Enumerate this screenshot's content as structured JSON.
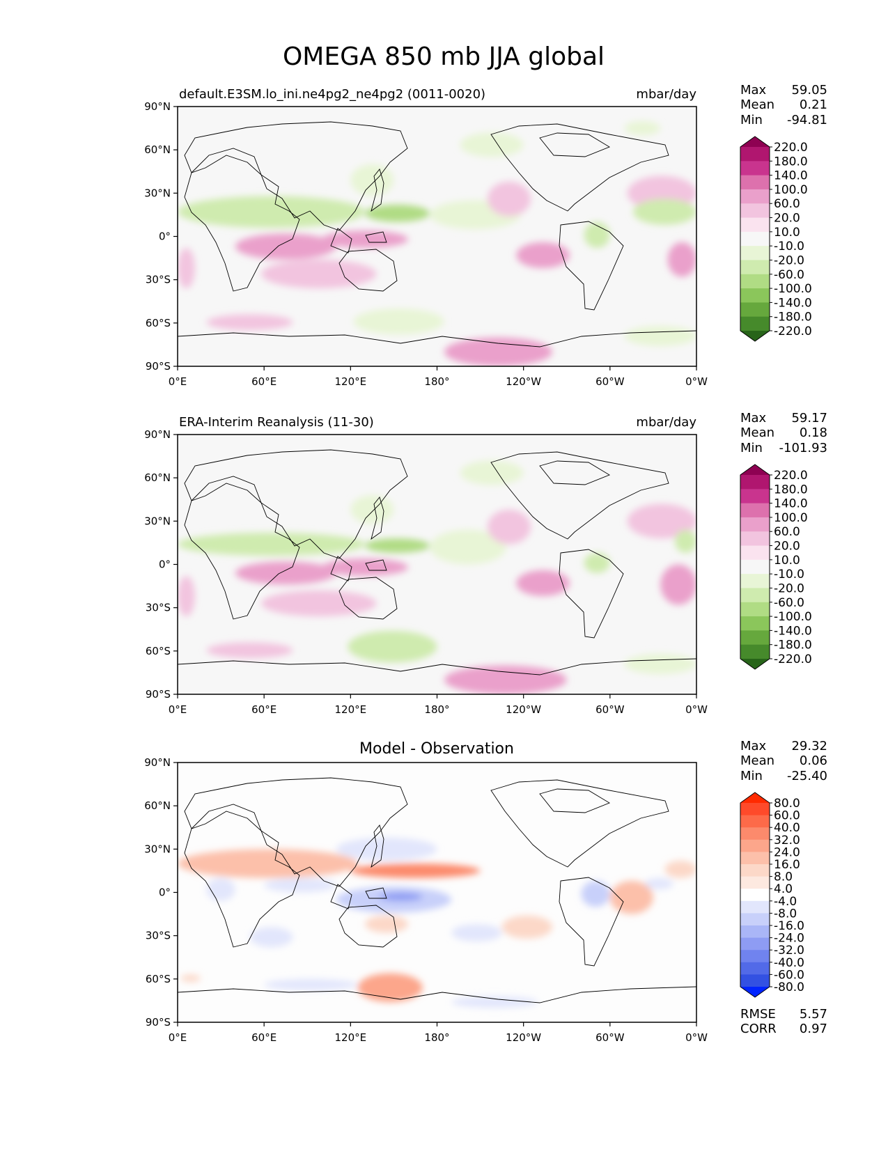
{
  "figure": {
    "title": "OMEGA 850 mb JJA global"
  },
  "axes": {
    "lat_ticks": [
      "90°N",
      "60°N",
      "30°N",
      "0°",
      "30°S",
      "60°S",
      "90°S"
    ],
    "lon_ticks": [
      "0°E",
      "60°E",
      "120°E",
      "180°",
      "120°W",
      "60°W",
      "0°W"
    ]
  },
  "stat_labels": {
    "max": "Max",
    "mean": "Mean",
    "min": "Min",
    "rmse": "RMSE",
    "corr": "CORR"
  },
  "colors": {
    "ocean_background": "#f7f7f7",
    "diff_background": "#fdfdfd",
    "coastline": "#000000"
  },
  "chart_data": [
    {
      "type": "heatmap",
      "panel": "test",
      "title": "default.E3SM.lo_ini.ne4pg2_ne4pg2 (0011-0020)",
      "units": "mbar/day",
      "xlim": [
        0,
        360
      ],
      "ylim": [
        -90,
        90
      ],
      "stats": {
        "max": "59.05",
        "mean": "0.21",
        "min": "-94.81"
      },
      "levels": [
        "220.0",
        "180.0",
        "140.0",
        "100.0",
        "60.0",
        "20.0",
        "10.0",
        "-10.0",
        "-20.0",
        "-60.0",
        "-100.0",
        "-140.0",
        "-180.0",
        "-220.0"
      ],
      "colorbar_colors": [
        "#8e0152",
        "#b0166f",
        "#c9348e",
        "#dd71ad",
        "#eaa0cb",
        "#f2c4df",
        "#fae3ef",
        "#f7f7f7",
        "#e8f5d6",
        "#cfebaf",
        "#b0dc84",
        "#8bc65b",
        "#66a83d",
        "#468a2b",
        "#276419"
      ],
      "features": [
        {
          "sign": "neg",
          "level": 2,
          "lon": [
            0,
            130
          ],
          "lat": [
            6,
            28
          ]
        },
        {
          "sign": "neg",
          "level": 3,
          "lon": [
            130,
            175
          ],
          "lat": [
            10,
            22
          ]
        },
        {
          "sign": "neg",
          "level": 1,
          "lon": [
            175,
            238
          ],
          "lat": [
            5,
            25
          ]
        },
        {
          "sign": "neg",
          "level": 1,
          "lon": [
            120,
            150
          ],
          "lat": [
            28,
            50
          ]
        },
        {
          "sign": "neg",
          "level": 2,
          "lon": [
            282,
            300
          ],
          "lat": [
            -8,
            10
          ]
        },
        {
          "sign": "neg",
          "level": 2,
          "lon": [
            316,
            360
          ],
          "lat": [
            8,
            26
          ]
        },
        {
          "sign": "neg",
          "level": 1,
          "lon": [
            196,
            240
          ],
          "lat": [
            55,
            72
          ]
        },
        {
          "sign": "neg",
          "level": 1,
          "lon": [
            310,
            335
          ],
          "lat": [
            70,
            80
          ]
        },
        {
          "sign": "neg",
          "level": 1,
          "lon": [
            122,
            185
          ],
          "lat": [
            -68,
            -50
          ]
        },
        {
          "sign": "neg",
          "level": 1,
          "lon": [
            310,
            360
          ],
          "lat": [
            -76,
            -62
          ]
        },
        {
          "sign": "pos",
          "level": 2,
          "lon": [
            40,
            110
          ],
          "lat": [
            -16,
            2
          ]
        },
        {
          "sign": "pos",
          "level": 2,
          "lon": [
            100,
            160
          ],
          "lat": [
            -8,
            4
          ]
        },
        {
          "sign": "pos",
          "level": 1,
          "lon": [
            0,
            12
          ],
          "lat": [
            -36,
            -8
          ]
        },
        {
          "sign": "pos",
          "level": 1,
          "lon": [
            58,
            138
          ],
          "lat": [
            -36,
            -16
          ]
        },
        {
          "sign": "pos",
          "level": 2,
          "lon": [
            235,
            272
          ],
          "lat": [
            -22,
            -4
          ]
        },
        {
          "sign": "pos",
          "level": 2,
          "lon": [
            340,
            360
          ],
          "lat": [
            -28,
            -4
          ]
        },
        {
          "sign": "pos",
          "level": 1,
          "lon": [
            215,
            245
          ],
          "lat": [
            14,
            38
          ]
        },
        {
          "sign": "pos",
          "level": 1,
          "lon": [
            312,
            360
          ],
          "lat": [
            18,
            42
          ]
        },
        {
          "sign": "pos",
          "level": 1,
          "lon": [
            20,
            80
          ],
          "lat": [
            -65,
            -54
          ]
        },
        {
          "sign": "pos",
          "level": 2,
          "lon": [
            185,
            260
          ],
          "lat": [
            -90,
            -70
          ]
        }
      ]
    },
    {
      "type": "heatmap",
      "panel": "reference",
      "title": "ERA-Interim Reanalysis (11-30)",
      "units": "mbar/day",
      "xlim": [
        0,
        360
      ],
      "ylim": [
        -90,
        90
      ],
      "stats": {
        "max": "59.17",
        "mean": "0.18",
        "min": "-101.93"
      },
      "levels": [
        "220.0",
        "180.0",
        "140.0",
        "100.0",
        "60.0",
        "20.0",
        "10.0",
        "-10.0",
        "-20.0",
        "-60.0",
        "-100.0",
        "-140.0",
        "-180.0",
        "-220.0"
      ],
      "colorbar_colors": [
        "#8e0152",
        "#b0166f",
        "#c9348e",
        "#dd71ad",
        "#eaa0cb",
        "#f2c4df",
        "#fae3ef",
        "#f7f7f7",
        "#e8f5d6",
        "#cfebaf",
        "#b0dc84",
        "#8bc65b",
        "#66a83d",
        "#468a2b",
        "#276419"
      ],
      "features": [
        {
          "sign": "neg",
          "level": 2,
          "lon": [
            0,
            130
          ],
          "lat": [
            6,
            22
          ]
        },
        {
          "sign": "neg",
          "level": 3,
          "lon": [
            130,
            175
          ],
          "lat": [
            8,
            18
          ]
        },
        {
          "sign": "neg",
          "level": 1,
          "lon": [
            175,
            228
          ],
          "lat": [
            0,
            24
          ]
        },
        {
          "sign": "neg",
          "level": 1,
          "lon": [
            120,
            150
          ],
          "lat": [
            28,
            48
          ]
        },
        {
          "sign": "neg",
          "level": 2,
          "lon": [
            282,
            300
          ],
          "lat": [
            -6,
            8
          ]
        },
        {
          "sign": "neg",
          "level": 2,
          "lon": [
            345,
            360
          ],
          "lat": [
            8,
            24
          ]
        },
        {
          "sign": "neg",
          "level": 1,
          "lon": [
            196,
            240
          ],
          "lat": [
            55,
            72
          ]
        },
        {
          "sign": "neg",
          "level": 2,
          "lon": [
            118,
            180
          ],
          "lat": [
            -68,
            -46
          ]
        },
        {
          "sign": "neg",
          "level": 1,
          "lon": [
            310,
            360
          ],
          "lat": [
            -76,
            -62
          ]
        },
        {
          "sign": "pos",
          "level": 2,
          "lon": [
            40,
            110
          ],
          "lat": [
            -14,
            2
          ]
        },
        {
          "sign": "pos",
          "level": 2,
          "lon": [
            100,
            160
          ],
          "lat": [
            -8,
            4
          ]
        },
        {
          "sign": "pos",
          "level": 1,
          "lon": [
            0,
            12
          ],
          "lat": [
            -36,
            -8
          ]
        },
        {
          "sign": "pos",
          "level": 1,
          "lon": [
            58,
            138
          ],
          "lat": [
            -36,
            -18
          ]
        },
        {
          "sign": "pos",
          "level": 2,
          "lon": [
            235,
            272
          ],
          "lat": [
            -22,
            -4
          ]
        },
        {
          "sign": "pos",
          "level": 2,
          "lon": [
            335,
            360
          ],
          "lat": [
            -28,
            0
          ]
        },
        {
          "sign": "pos",
          "level": 1,
          "lon": [
            215,
            245
          ],
          "lat": [
            14,
            38
          ]
        },
        {
          "sign": "pos",
          "level": 1,
          "lon": [
            312,
            360
          ],
          "lat": [
            18,
            42
          ]
        },
        {
          "sign": "pos",
          "level": 1,
          "lon": [
            20,
            80
          ],
          "lat": [
            -65,
            -54
          ]
        },
        {
          "sign": "pos",
          "level": 2,
          "lon": [
            185,
            270
          ],
          "lat": [
            -90,
            -70
          ]
        }
      ]
    },
    {
      "type": "heatmap",
      "panel": "difference",
      "title": "Model - Observation",
      "units": "",
      "xlim": [
        0,
        360
      ],
      "ylim": [
        -90,
        90
      ],
      "stats": {
        "max": "29.32",
        "mean": "0.06",
        "min": "-25.40"
      },
      "rmse": "5.57",
      "corr": "0.97",
      "levels": [
        "80.0",
        "60.0",
        "40.0",
        "32.0",
        "24.0",
        "16.0",
        "8.0",
        "4.0",
        "-4.0",
        "-8.0",
        "-16.0",
        "-24.0",
        "-32.0",
        "-40.0",
        "-60.0",
        "-80.0"
      ],
      "colorbar_colors": [
        "#ff2a00",
        "#fe4a2a",
        "#fd6a49",
        "#fc8a6c",
        "#fca68b",
        "#fcc0aa",
        "#fcd8c8",
        "#fde9e0",
        "#ffffff",
        "#e2e6fc",
        "#c8d0fa",
        "#aab6f7",
        "#8e9cf3",
        "#7083ef",
        "#526ae8",
        "#3351e2",
        "#0024ff"
      ],
      "features": [
        {
          "sign": "pos",
          "level": 4,
          "lon": [
            120,
            210
          ],
          "lat": [
            10,
            20
          ]
        },
        {
          "sign": "pos",
          "level": 2,
          "lon": [
            0,
            125
          ],
          "lat": [
            10,
            30
          ]
        },
        {
          "sign": "pos",
          "level": 3,
          "lon": [
            145,
            185
          ],
          "lat": [
            12,
            18
          ]
        },
        {
          "sign": "pos",
          "level": 1,
          "lon": [
            338,
            360
          ],
          "lat": [
            10,
            22
          ]
        },
        {
          "sign": "pos",
          "level": 2,
          "lon": [
            300,
            330
          ],
          "lat": [
            -15,
            8
          ]
        },
        {
          "sign": "pos",
          "level": 1,
          "lon": [
            225,
            260
          ],
          "lat": [
            -32,
            -16
          ]
        },
        {
          "sign": "pos",
          "level": 1,
          "lon": [
            130,
            160
          ],
          "lat": [
            -28,
            -16
          ]
        },
        {
          "sign": "pos",
          "level": 3,
          "lon": [
            125,
            170
          ],
          "lat": [
            -76,
            -56
          ]
        },
        {
          "sign": "pos",
          "level": 1,
          "lon": [
            2,
            16
          ],
          "lat": [
            -62,
            -57
          ]
        },
        {
          "sign": "neg",
          "level": 2,
          "lon": [
            110,
            190
          ],
          "lat": [
            -14,
            4
          ]
        },
        {
          "sign": "neg",
          "level": 4,
          "lon": [
            140,
            170
          ],
          "lat": [
            -6,
            0
          ]
        },
        {
          "sign": "neg",
          "level": 1,
          "lon": [
            110,
            180
          ],
          "lat": [
            22,
            38
          ]
        },
        {
          "sign": "neg",
          "level": 1,
          "lon": [
            60,
            110
          ],
          "lat": [
            0,
            10
          ]
        },
        {
          "sign": "neg",
          "level": 1,
          "lon": [
            20,
            40
          ],
          "lat": [
            -6,
            10
          ]
        },
        {
          "sign": "neg",
          "level": 2,
          "lon": [
            280,
            300
          ],
          "lat": [
            -10,
            8
          ]
        },
        {
          "sign": "neg",
          "level": 1,
          "lon": [
            324,
            344
          ],
          "lat": [
            2,
            10
          ]
        },
        {
          "sign": "neg",
          "level": 1,
          "lon": [
            50,
            80
          ],
          "lat": [
            -38,
            -24
          ]
        },
        {
          "sign": "neg",
          "level": 1,
          "lon": [
            190,
            225
          ],
          "lat": [
            -34,
            -22
          ]
        },
        {
          "sign": "neg",
          "level": 1,
          "lon": [
            60,
            125
          ],
          "lat": [
            -68,
            -60
          ]
        },
        {
          "sign": "neg",
          "level": 1,
          "lon": [
            190,
            250
          ],
          "lat": [
            -80,
            -72
          ]
        }
      ]
    }
  ]
}
